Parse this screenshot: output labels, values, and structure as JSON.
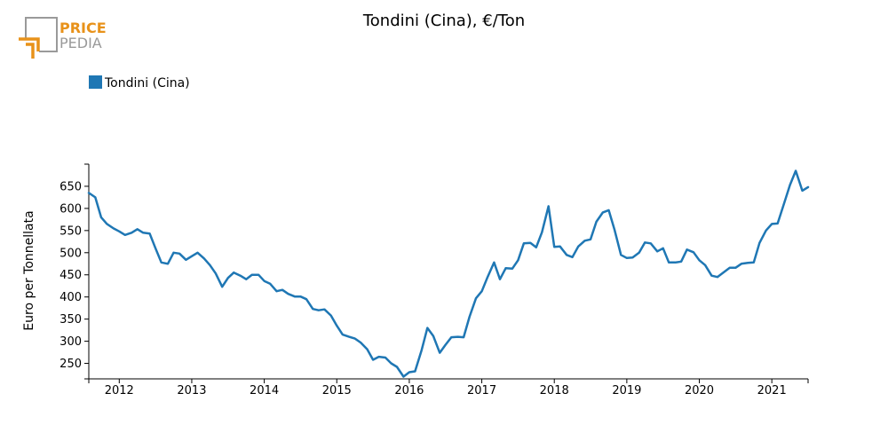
{
  "logo": {
    "word1": "PRICE",
    "word2": "PEDIA",
    "accent_color": "#e8921a",
    "gray_color": "#9a9a9a"
  },
  "chart_data": {
    "type": "line",
    "title": "Tondini (Cina), €/Ton",
    "xlabel": "",
    "ylabel": "Euro per Tonnellata",
    "legend": {
      "placement": "top-left"
    },
    "grid": false,
    "xlim": [
      2011.58,
      2021.5
    ],
    "ylim": [
      215,
      700
    ],
    "y_ticks": [
      250,
      300,
      350,
      400,
      450,
      500,
      550,
      600,
      650
    ],
    "x_ticks": [
      {
        "value": 2012,
        "label": "2012"
      },
      {
        "value": 2013,
        "label": "2013"
      },
      {
        "value": 2014,
        "label": "2014"
      },
      {
        "value": 2015,
        "label": "2015"
      },
      {
        "value": 2016,
        "label": "2016"
      },
      {
        "value": 2017,
        "label": "2017"
      },
      {
        "value": 2018,
        "label": "2018"
      },
      {
        "value": 2019,
        "label": "2019"
      },
      {
        "value": 2020,
        "label": "2020"
      },
      {
        "value": 2021,
        "label": "2021"
      }
    ],
    "series": [
      {
        "name": "Tondini (Cina)",
        "color": "#1f77b4",
        "x": [
          2011.58,
          2011.67,
          2011.75,
          2011.83,
          2011.92,
          2012.0,
          2012.08,
          2012.17,
          2012.25,
          2012.33,
          2012.42,
          2012.5,
          2012.58,
          2012.67,
          2012.75,
          2012.83,
          2012.92,
          2013.0,
          2013.08,
          2013.17,
          2013.25,
          2013.33,
          2013.42,
          2013.5,
          2013.58,
          2013.67,
          2013.75,
          2013.83,
          2013.92,
          2014.0,
          2014.08,
          2014.17,
          2014.25,
          2014.33,
          2014.42,
          2014.5,
          2014.58,
          2014.67,
          2014.75,
          2014.83,
          2014.92,
          2015.0,
          2015.08,
          2015.17,
          2015.25,
          2015.33,
          2015.42,
          2015.5,
          2015.58,
          2015.67,
          2015.75,
          2015.83,
          2015.92,
          2016.0,
          2016.08,
          2016.17,
          2016.25,
          2016.33,
          2016.42,
          2016.5,
          2016.58,
          2016.67,
          2016.75,
          2016.83,
          2016.92,
          2017.0,
          2017.08,
          2017.17,
          2017.25,
          2017.33,
          2017.42,
          2017.5,
          2017.58,
          2017.67,
          2017.75,
          2017.83,
          2017.92,
          2018.0,
          2018.08,
          2018.17,
          2018.25,
          2018.33,
          2018.42,
          2018.5,
          2018.58,
          2018.67,
          2018.75,
          2018.83,
          2018.92,
          2019.0,
          2019.08,
          2019.17,
          2019.25,
          2019.33,
          2019.42,
          2019.5,
          2019.58,
          2019.67,
          2019.75,
          2019.83,
          2019.92,
          2020.0,
          2020.08,
          2020.17,
          2020.25,
          2020.33,
          2020.42,
          2020.5,
          2020.58,
          2020.67,
          2020.75,
          2020.83,
          2020.92,
          2021.0,
          2021.08,
          2021.17,
          2021.25,
          2021.33,
          2021.42,
          2021.5
        ],
        "values": [
          635,
          625,
          580,
          565,
          555,
          548,
          540,
          545,
          553,
          545,
          543,
          510,
          478,
          475,
          500,
          498,
          484,
          492,
          500,
          487,
          472,
          453,
          423,
          443,
          455,
          448,
          440,
          450,
          450,
          436,
          430,
          413,
          416,
          407,
          401,
          401,
          395,
          373,
          370,
          372,
          358,
          335,
          315,
          310,
          306,
          297,
          282,
          258,
          265,
          263,
          250,
          242,
          220,
          230,
          232,
          280,
          330,
          312,
          274,
          292,
          309,
          310,
          309,
          355,
          397,
          413,
          445,
          478,
          440,
          465,
          464,
          483,
          521,
          522,
          512,
          546,
          605,
          513,
          514,
          495,
          490,
          514,
          527,
          530,
          570,
          591,
          596,
          552,
          495,
          488,
          489,
          500,
          523,
          521,
          503,
          510,
          478,
          478,
          480,
          507,
          501,
          483,
          472,
          448,
          445,
          455,
          466,
          466,
          475,
          477,
          478,
          522,
          550,
          565,
          566,
          612,
          653,
          685,
          640,
          648
        ]
      }
    ]
  }
}
